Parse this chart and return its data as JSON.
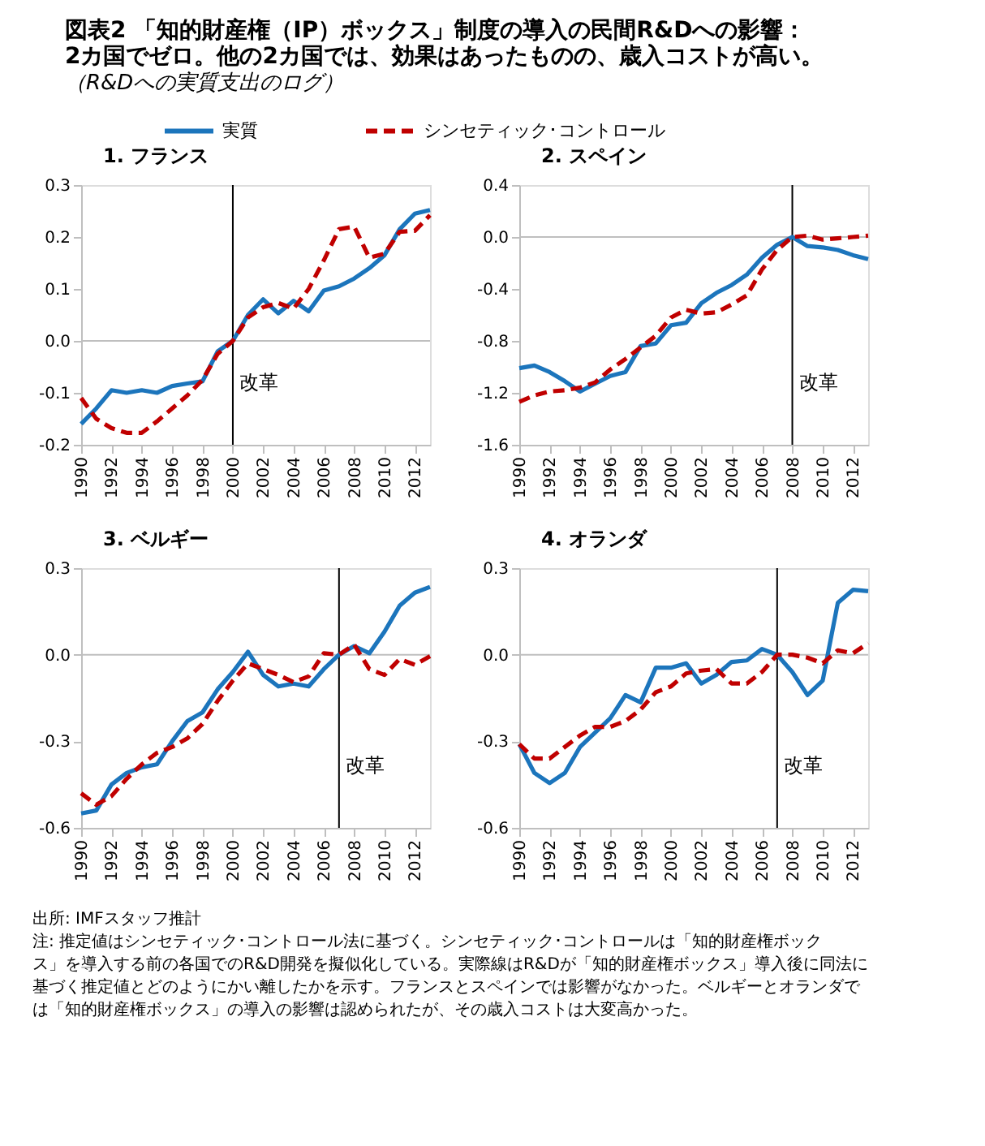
{
  "chart_data": [
    {
      "type": "line",
      "title": "図表2 「知的財産権（IP）ボックス」制度の導入の民間R&Dへの影響：\n2カ国でゼロ。他の2カ国では、効果はあったものの、歳入コストが高い。",
      "subtitle": "（R&Dへの実質支出のログ）",
      "legend": "top",
      "x": [
        1990,
        1991,
        1992,
        1993,
        1994,
        1995,
        1996,
        1997,
        1998,
        1999,
        2000,
        2001,
        2002,
        2003,
        2004,
        2005,
        2006,
        2007,
        2008,
        2009,
        2010,
        2011,
        2012,
        2013
      ],
      "xlim": [
        1990,
        2013
      ],
      "xticks": [
        1990,
        1992,
        1994,
        1996,
        1998,
        2000,
        2002,
        2004,
        2006,
        2008,
        2010,
        2012
      ],
      "ylim": [
        -0.2,
        0.3
      ],
      "yticks": [
        -0.2,
        -0.1,
        {
          "value": 0,
          "label": "0.0"
        },
        0.1,
        0.2,
        0.3
      ],
      "series": [
        {
          "name": "実質",
          "color": "#1c75bc",
          "line_style": "solid",
          "values": [
            -0.16,
            -0.13,
            -0.095,
            -0.1,
            -0.095,
            -0.1,
            -0.087,
            -0.082,
            -0.078,
            -0.02,
            0.0,
            0.05,
            0.08,
            0.053,
            0.077,
            0.057,
            0.097,
            0.105,
            0.12,
            0.14,
            0.165,
            0.215,
            0.245,
            0.252
          ]
        },
        {
          "name": "シンセティック･コントロール",
          "color": "#c00000",
          "line_style": "dashed",
          "values": [
            -0.11,
            -0.15,
            -0.168,
            -0.177,
            -0.177,
            -0.155,
            -0.13,
            -0.105,
            -0.075,
            -0.025,
            0.0,
            0.045,
            0.065,
            0.073,
            0.062,
            0.1,
            0.155,
            0.215,
            0.22,
            0.16,
            0.168,
            0.21,
            0.212,
            0.242
          ]
        }
      ],
      "ref_lines": [
        {
          "axis": "y",
          "value": 0,
          "color": "#bfbfbf"
        },
        {
          "axis": "x",
          "value": 2000,
          "color": "#000000",
          "label": "改革"
        }
      ],
      "annotations": [
        {
          "text": "1. フランス"
        }
      ]
    },
    {
      "type": "line",
      "x": [
        1990,
        1991,
        1992,
        1993,
        1994,
        1995,
        1996,
        1997,
        1998,
        1999,
        2000,
        2001,
        2002,
        2003,
        2004,
        2005,
        2006,
        2007,
        2008,
        2009,
        2010,
        2011,
        2012,
        2013
      ],
      "xlim": [
        1990,
        2013
      ],
      "xticks": [
        1990,
        1992,
        1994,
        1996,
        1998,
        2000,
        2002,
        2004,
        2006,
        2008,
        2010,
        2012
      ],
      "ylim": [
        -1.6,
        0.4
      ],
      "yticks": [
        -1.6,
        -1.2,
        -0.8,
        -0.4,
        {
          "value": 0,
          "label": "0.0"
        },
        0.4
      ],
      "series": [
        {
          "color": "#1c75bc",
          "line_style": "solid",
          "values": [
            -1.01,
            -0.99,
            -1.04,
            -1.11,
            -1.19,
            -1.13,
            -1.07,
            -1.04,
            -0.84,
            -0.82,
            -0.68,
            -0.66,
            -0.51,
            -0.43,
            -0.37,
            -0.29,
            -0.16,
            -0.06,
            0.0,
            -0.07,
            -0.08,
            -0.1,
            -0.14,
            -0.17
          ]
        },
        {
          "color": "#c00000",
          "line_style": "dashed",
          "values": [
            -1.27,
            -1.22,
            -1.19,
            -1.18,
            -1.16,
            -1.12,
            -1.02,
            -0.94,
            -0.85,
            -0.76,
            -0.62,
            -0.56,
            -0.59,
            -0.58,
            -0.52,
            -0.45,
            -0.25,
            -0.1,
            0.0,
            0.01,
            -0.02,
            -0.01,
            0.0,
            0.01
          ]
        }
      ],
      "ref_lines": [
        {
          "axis": "y",
          "value": 0,
          "color": "#bfbfbf"
        },
        {
          "axis": "x",
          "value": 2008,
          "color": "#000000",
          "label": "改革"
        }
      ],
      "annotations": [
        {
          "text": "2. スペイン"
        }
      ]
    },
    {
      "type": "line",
      "x": [
        1990,
        1991,
        1992,
        1993,
        1994,
        1995,
        1996,
        1997,
        1998,
        1999,
        2000,
        2001,
        2002,
        2003,
        2004,
        2005,
        2006,
        2007,
        2008,
        2009,
        2010,
        2011,
        2012,
        2013
      ],
      "xlim": [
        1990,
        2013
      ],
      "xticks": [
        1990,
        1992,
        1994,
        1996,
        1998,
        2000,
        2002,
        2004,
        2006,
        2008,
        2010,
        2012
      ],
      "ylim": [
        -0.6,
        0.3
      ],
      "yticks": [
        -0.6,
        -0.3,
        {
          "value": 0,
          "label": "0.0"
        },
        0.3
      ],
      "series": [
        {
          "color": "#1c75bc",
          "line_style": "solid",
          "values": [
            -0.55,
            -0.54,
            -0.45,
            -0.41,
            -0.39,
            -0.38,
            -0.3,
            -0.23,
            -0.2,
            -0.12,
            -0.06,
            0.01,
            -0.07,
            -0.11,
            -0.1,
            -0.11,
            -0.05,
            0.0,
            0.03,
            0.005,
            0.08,
            0.17,
            0.215,
            0.235
          ]
        },
        {
          "color": "#c00000",
          "line_style": "dashed",
          "values": [
            -0.48,
            -0.52,
            -0.49,
            -0.43,
            -0.38,
            -0.34,
            -0.32,
            -0.29,
            -0.24,
            -0.16,
            -0.09,
            -0.03,
            -0.05,
            -0.07,
            -0.095,
            -0.075,
            0.005,
            0.0,
            0.035,
            -0.05,
            -0.07,
            -0.015,
            -0.035,
            -0.005
          ]
        }
      ],
      "ref_lines": [
        {
          "axis": "y",
          "value": 0,
          "color": "#bfbfbf"
        },
        {
          "axis": "x",
          "value": 2007,
          "color": "#000000",
          "label": "改革"
        }
      ],
      "annotations": [
        {
          "text": "3. ベルギー"
        }
      ]
    },
    {
      "type": "line",
      "x": [
        1990,
        1991,
        1992,
        1993,
        1994,
        1995,
        1996,
        1997,
        1998,
        1999,
        2000,
        2001,
        2002,
        2003,
        2004,
        2005,
        2006,
        2007,
        2008,
        2009,
        2010,
        2011,
        2012,
        2013
      ],
      "xlim": [
        1990,
        2013
      ],
      "xticks": [
        1990,
        1992,
        1994,
        1996,
        1998,
        2000,
        2002,
        2004,
        2006,
        2008,
        2010,
        2012
      ],
      "ylim": [
        -0.6,
        0.3
      ],
      "yticks": [
        -0.6,
        -0.3,
        {
          "value": 0,
          "label": "0.0"
        },
        0.3
      ],
      "series": [
        {
          "color": "#1c75bc",
          "line_style": "solid",
          "values": [
            -0.31,
            -0.41,
            -0.445,
            -0.41,
            -0.32,
            -0.27,
            -0.22,
            -0.14,
            -0.165,
            -0.045,
            -0.045,
            -0.03,
            -0.1,
            -0.07,
            -0.025,
            -0.02,
            0.02,
            0.0,
            -0.06,
            -0.14,
            -0.09,
            0.18,
            0.225,
            0.22
          ]
        },
        {
          "color": "#c00000",
          "line_style": "dashed",
          "values": [
            -0.31,
            -0.36,
            -0.36,
            -0.32,
            -0.28,
            -0.25,
            -0.25,
            -0.23,
            -0.19,
            -0.13,
            -0.11,
            -0.065,
            -0.055,
            -0.05,
            -0.1,
            -0.1,
            -0.06,
            0.0,
            0.0,
            -0.01,
            -0.03,
            0.015,
            0.005,
            0.04
          ]
        }
      ],
      "ref_lines": [
        {
          "axis": "y",
          "value": 0,
          "color": "#bfbfbf"
        },
        {
          "axis": "x",
          "value": 2007,
          "color": "#000000",
          "label": "改革"
        }
      ],
      "annotations": [
        {
          "text": "4. オランダ"
        },
        "出所: IMFスタッフ推計",
        "注: 推定値はシンセティック･コントロール法に基づく。シンセティック･コントロールは「知的財産権ボックス」を導入する前の各国でのR&D開発を擬似化している。実際線はR&Dが「知的財産権ボックス」導入後に同法に基づく推定値とどのようにかい離したかを示す。フランスとスペインでは影響がなかった。ベルギーとオランダでは「知的財産権ボックス」の導入の影響は認められたが、その歳入コストは大変高かった。"
      ]
    }
  ]
}
